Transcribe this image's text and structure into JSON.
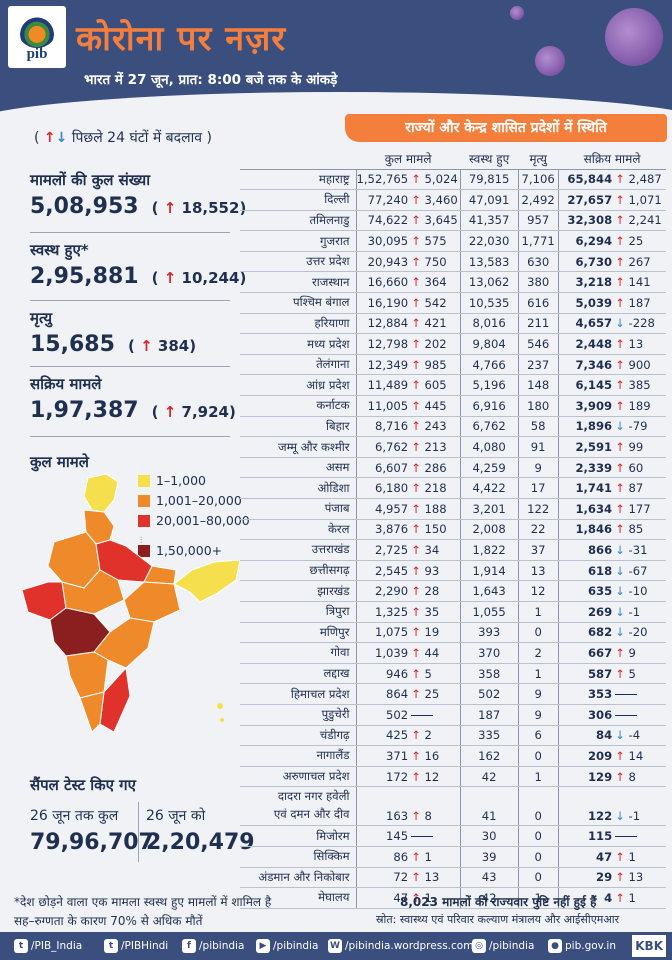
{
  "header": {
    "logo_text": "pib",
    "title": "कोरोना पर नज़र",
    "subtitle": "भारत में 27 जून, प्रात: 8:00 बजे तक के आंकड़े"
  },
  "change_note": {
    "arrows": "↑↓",
    "text": "पिछले 24 घंटों में बदलाव",
    "open": "(",
    "close": ")"
  },
  "banner": "राज्यों और केन्द्र शासित प्रदेशों में स्थिति",
  "stats": [
    {
      "label": "मामलों की कुल संख्या",
      "value": "5,08,953",
      "change": "18,552"
    },
    {
      "label": "स्वस्थ हुए*",
      "value": "2,95,881",
      "change": "10,244"
    },
    {
      "label": "मृत्यु",
      "value": "15,685",
      "change": "384"
    },
    {
      "label": "सक्रिय मामले",
      "value": "1,97,387",
      "change": "7,924"
    }
  ],
  "map": {
    "title": "कुल मामले",
    "legend": [
      {
        "label": "1–1,000",
        "color": "#f5df4d"
      },
      {
        "label": "1,001–20,000",
        "color": "#ef8a2b"
      },
      {
        "label": "20,001–80,000",
        "color": "#e0322a"
      },
      {
        "label": "1,50,000+",
        "color": "#8b1e1e"
      }
    ]
  },
  "tests": {
    "title": "सैंपल टेस्ट किए गए",
    "label_total": "26 जून तक कुल",
    "label_day": "26 जून को",
    "value_total": "79,96,707",
    "value_day": "2,20,479"
  },
  "table": {
    "headers": [
      "कुल मामले",
      "स्वस्थ हुए",
      "मृत्यु",
      "सक्रिय मामले"
    ],
    "rows": [
      {
        "name": "महाराष्ट्र",
        "total": "1,52,765",
        "tc": "5,024",
        "td": "up",
        "rec": "79,815",
        "deaths": "7,106",
        "active": "65,844",
        "ac": "2,487",
        "ad": "up"
      },
      {
        "name": "दिल्ली",
        "total": "77,240",
        "tc": "3,460",
        "td": "up",
        "rec": "47,091",
        "deaths": "2,492",
        "active": "27,657",
        "ac": "1,071",
        "ad": "up"
      },
      {
        "name": "तमिलनाडु",
        "total": "74,622",
        "tc": "3,645",
        "td": "up",
        "rec": "41,357",
        "deaths": "957",
        "active": "32,308",
        "ac": "2,241",
        "ad": "up"
      },
      {
        "name": "गुजरात",
        "total": "30,095",
        "tc": "575",
        "td": "up",
        "rec": "22,030",
        "deaths": "1,771",
        "active": "6,294",
        "ac": "25",
        "ad": "up"
      },
      {
        "name": "उत्तर प्रदेश",
        "total": "20,943",
        "tc": "750",
        "td": "up",
        "rec": "13,583",
        "deaths": "630",
        "active": "6,730",
        "ac": "267",
        "ad": "up"
      },
      {
        "name": "राजस्थान",
        "total": "16,660",
        "tc": "364",
        "td": "up",
        "rec": "13,062",
        "deaths": "380",
        "active": "3,218",
        "ac": "141",
        "ad": "up"
      },
      {
        "name": "पश्चिम बंगाल",
        "total": "16,190",
        "tc": "542",
        "td": "up",
        "rec": "10,535",
        "deaths": "616",
        "active": "5,039",
        "ac": "187",
        "ad": "up"
      },
      {
        "name": "हरियाणा",
        "total": "12,884",
        "tc": "421",
        "td": "up",
        "rec": "8,016",
        "deaths": "211",
        "active": "4,657",
        "ac": "-228",
        "ad": "down"
      },
      {
        "name": "मध्य प्रदेश",
        "total": "12,798",
        "tc": "202",
        "td": "up",
        "rec": "9,804",
        "deaths": "546",
        "active": "2,448",
        "ac": "13",
        "ad": "up"
      },
      {
        "name": "तेलंगाना",
        "total": "12,349",
        "tc": "985",
        "td": "up",
        "rec": "4,766",
        "deaths": "237",
        "active": "7,346",
        "ac": "900",
        "ad": "up"
      },
      {
        "name": "आंध्र प्रदेश",
        "total": "11,489",
        "tc": "605",
        "td": "up",
        "rec": "5,196",
        "deaths": "148",
        "active": "6,145",
        "ac": "385",
        "ad": "up"
      },
      {
        "name": "कर्नाटक",
        "total": "11,005",
        "tc": "445",
        "td": "up",
        "rec": "6,916",
        "deaths": "180",
        "active": "3,909",
        "ac": "189",
        "ad": "up"
      },
      {
        "name": "बिहार",
        "total": "8,716",
        "tc": "243",
        "td": "up",
        "rec": "6,762",
        "deaths": "58",
        "active": "1,896",
        "ac": "-79",
        "ad": "down"
      },
      {
        "name": "जम्मू और कश्मीर",
        "total": "6,762",
        "tc": "213",
        "td": "up",
        "rec": "4,080",
        "deaths": "91",
        "active": "2,591",
        "ac": "99",
        "ad": "up"
      },
      {
        "name": "असम",
        "total": "6,607",
        "tc": "286",
        "td": "up",
        "rec": "4,259",
        "deaths": "9",
        "active": "2,339",
        "ac": "60",
        "ad": "up"
      },
      {
        "name": "ओडिशा",
        "total": "6,180",
        "tc": "218",
        "td": "up",
        "rec": "4,422",
        "deaths": "17",
        "active": "1,741",
        "ac": "87",
        "ad": "up"
      },
      {
        "name": "पंजाब",
        "total": "4,957",
        "tc": "188",
        "td": "up",
        "rec": "3,201",
        "deaths": "122",
        "active": "1,634",
        "ac": "177",
        "ad": "up"
      },
      {
        "name": "केरल",
        "total": "3,876",
        "tc": "150",
        "td": "up",
        "rec": "2,008",
        "deaths": "22",
        "active": "1,846",
        "ac": "85",
        "ad": "up"
      },
      {
        "name": "उत्तराखंड",
        "total": "2,725",
        "tc": "34",
        "td": "up",
        "rec": "1,822",
        "deaths": "37",
        "active": "866",
        "ac": "-31",
        "ad": "down"
      },
      {
        "name": "छत्तीसगढ़",
        "total": "2,545",
        "tc": "93",
        "td": "up",
        "rec": "1,914",
        "deaths": "13",
        "active": "618",
        "ac": "-67",
        "ad": "down"
      },
      {
        "name": "झारखंड",
        "total": "2,290",
        "tc": "28",
        "td": "up",
        "rec": "1,643",
        "deaths": "12",
        "active": "635",
        "ac": "-10",
        "ad": "down"
      },
      {
        "name": "त्रिपुरा",
        "total": "1,325",
        "tc": "35",
        "td": "up",
        "rec": "1,055",
        "deaths": "1",
        "active": "269",
        "ac": "-1",
        "ad": "down"
      },
      {
        "name": "मणिपुर",
        "total": "1,075",
        "tc": "19",
        "td": "up",
        "rec": "393",
        "deaths": "0",
        "active": "682",
        "ac": "-20",
        "ad": "down"
      },
      {
        "name": "गोवा",
        "total": "1,039",
        "tc": "44",
        "td": "up",
        "rec": "370",
        "deaths": "2",
        "active": "667",
        "ac": "9",
        "ad": "up"
      },
      {
        "name": "लद्दाख",
        "total": "946",
        "tc": "5",
        "td": "up",
        "rec": "358",
        "deaths": "1",
        "active": "587",
        "ac": "5",
        "ad": "up"
      },
      {
        "name": "हिमाचल प्रदेश",
        "total": "864",
        "tc": "25",
        "td": "up",
        "rec": "502",
        "deaths": "9",
        "active": "353",
        "ac": "",
        "ad": "none"
      },
      {
        "name": "पुडुचेरी",
        "total": "502",
        "tc": "",
        "td": "none",
        "rec": "187",
        "deaths": "9",
        "active": "306",
        "ac": "",
        "ad": "none"
      },
      {
        "name": "चंडीगढ़",
        "total": "425",
        "tc": "2",
        "td": "up",
        "rec": "335",
        "deaths": "6",
        "active": "84",
        "ac": "-4",
        "ad": "down"
      },
      {
        "name": "नागालैंड",
        "total": "371",
        "tc": "16",
        "td": "up",
        "rec": "162",
        "deaths": "0",
        "active": "209",
        "ac": "14",
        "ad": "up"
      },
      {
        "name": "अरुणाचल प्रदेश",
        "total": "172",
        "tc": "12",
        "td": "up",
        "rec": "42",
        "deaths": "1",
        "active": "129",
        "ac": "8",
        "ad": "up"
      },
      {
        "name": "दादरा नगर हवेली एवं दमन और दीव",
        "name_l1": "दादरा नगर हवेली",
        "name_l2": "एवं दमन और दीव",
        "total": "163",
        "tc": "8",
        "td": "up",
        "rec": "41",
        "deaths": "0",
        "active": "122",
        "ac": "-1",
        "ad": "down",
        "tall": true
      },
      {
        "name": "मिजोरम",
        "total": "145",
        "tc": "",
        "td": "none",
        "rec": "30",
        "deaths": "0",
        "active": "115",
        "ac": "",
        "ad": "none"
      },
      {
        "name": "सिक्किम",
        "total": "86",
        "tc": "1",
        "td": "up",
        "rec": "39",
        "deaths": "0",
        "active": "47",
        "ac": "1",
        "ad": "up"
      },
      {
        "name": "अंडमान और निकोबार",
        "total": "72",
        "tc": "13",
        "td": "up",
        "rec": "43",
        "deaths": "0",
        "active": "29",
        "ac": "13",
        "ad": "up"
      },
      {
        "name": "मेघालय",
        "total": "47",
        "tc": "1",
        "td": "up",
        "rec": "42",
        "deaths": "1",
        "active": "4",
        "ac": "1",
        "ad": "up"
      }
    ]
  },
  "footer": {
    "note1": "*देश छोड़ने वाला एक मामला स्वस्थ हुए मामलों में शामिल है",
    "note2": "सह–रुग्णता के कारण 70% से अधिक मौतें",
    "note3": "8,023 मामलों की राज्यवार पुष्टि नहीं हुई हैं",
    "source": "स्रोत: स्वास्थ्य एवं परिवार कल्याण मंत्रालय और आईसीएमआर"
  },
  "social": [
    {
      "icon": "twitter-icon",
      "glyph": "t",
      "label": "/PIB_India"
    },
    {
      "icon": "twitter-icon",
      "glyph": "t",
      "label": "/PIBHindi"
    },
    {
      "icon": "facebook-icon",
      "glyph": "f",
      "label": "/pibindia"
    },
    {
      "icon": "youtube-icon",
      "glyph": "▶",
      "label": "/pibindia"
    },
    {
      "icon": "wordpress-icon",
      "glyph": "W",
      "label": "/pibindia.wordpress.com"
    },
    {
      "icon": "instagram-icon",
      "glyph": "◎",
      "label": "/pibindia"
    },
    {
      "icon": "web-icon",
      "glyph": "●",
      "label": "pib.gov.in"
    }
  ],
  "brand": "KBK",
  "colors": {
    "up": "#d8262a",
    "down": "#2e88d6",
    "navy": "#3b4f7e",
    "orange": "#f47f3d"
  }
}
